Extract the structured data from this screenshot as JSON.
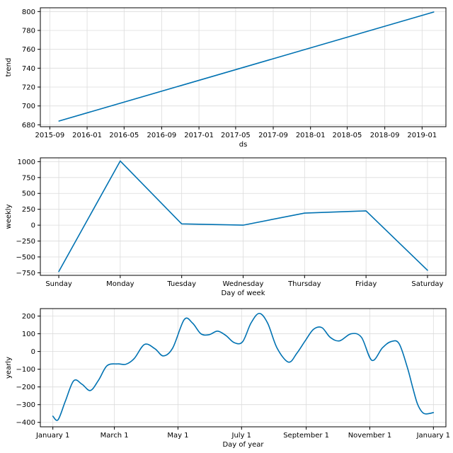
{
  "colors": {
    "line": "#0072B2",
    "grid": "#dcdcdc"
  },
  "chart_data": [
    {
      "type": "line",
      "xlabel": "ds",
      "ylabel": "trend",
      "x_type": "date",
      "xticks": [
        "2015-09",
        "2016-01",
        "2016-05",
        "2016-09",
        "2017-01",
        "2017-05",
        "2017-09",
        "2018-01",
        "2018-05",
        "2018-09",
        "2019-01"
      ],
      "xlim": [
        "2015-08-01",
        "2019-03-20"
      ],
      "yticks": [
        680,
        700,
        720,
        740,
        760,
        780,
        800
      ],
      "ylim": [
        678,
        804
      ],
      "grid": true,
      "series": [
        {
          "x": [
            "2015-10-01",
            "2019-02-08"
          ],
          "y": [
            684,
            799.5
          ]
        }
      ]
    },
    {
      "type": "line",
      "xlabel": "Day of week",
      "ylabel": "weekly",
      "categories": [
        "Sunday",
        "Monday",
        "Tuesday",
        "Wednesday",
        "Thursday",
        "Friday",
        "Saturday"
      ],
      "yticks": [
        1000,
        750,
        500,
        250,
        0,
        -250,
        -500,
        -750
      ],
      "ytick_labels": [
        "1000",
        "750",
        "500",
        "250",
        "0",
        "−250",
        "−500",
        "−750"
      ],
      "ylim": [
        -790,
        1060
      ],
      "grid": true,
      "series": [
        {
          "values": [
            -730,
            1010,
            20,
            0,
            190,
            225,
            -710
          ]
        }
      ]
    },
    {
      "type": "line",
      "xlabel": "Day of year",
      "ylabel": "yearly",
      "x_type": "day_of_year",
      "xticks": [
        0,
        59,
        120,
        181,
        243,
        304,
        365
      ],
      "xtick_labels": [
        "January 1",
        "March 1",
        "May 1",
        "July 1",
        "September 1",
        "November 1",
        "January 1"
      ],
      "xlim": [
        -12,
        377
      ],
      "yticks": [
        200,
        100,
        0,
        -100,
        -200,
        -300,
        -400
      ],
      "ytick_labels": [
        "200",
        "100",
        "0",
        "−100",
        "−200",
        "−300",
        "−400"
      ],
      "ylim": [
        -425,
        242
      ],
      "grid": true,
      "series": [
        {
          "x": [
            0,
            5,
            12,
            20,
            28,
            36,
            44,
            52,
            62,
            70,
            78,
            88,
            98,
            106,
            115,
            126,
            134,
            142,
            150,
            158,
            166,
            174,
            182,
            190,
            198,
            206,
            215,
            226,
            234,
            242,
            250,
            258,
            266,
            275,
            286,
            296,
            306,
            316,
            324,
            332,
            340,
            345,
            350,
            356,
            365
          ],
          "y": [
            -365,
            -385,
            -280,
            -165,
            -185,
            -220,
            -160,
            -80,
            -70,
            -72,
            -40,
            40,
            15,
            -25,
            20,
            180,
            160,
            100,
            95,
            115,
            90,
            50,
            55,
            160,
            215,
            160,
            20,
            -60,
            -10,
            60,
            125,
            135,
            80,
            60,
            100,
            80,
            -50,
            20,
            55,
            45,
            -90,
            -200,
            -300,
            -350,
            -345
          ]
        }
      ]
    }
  ]
}
